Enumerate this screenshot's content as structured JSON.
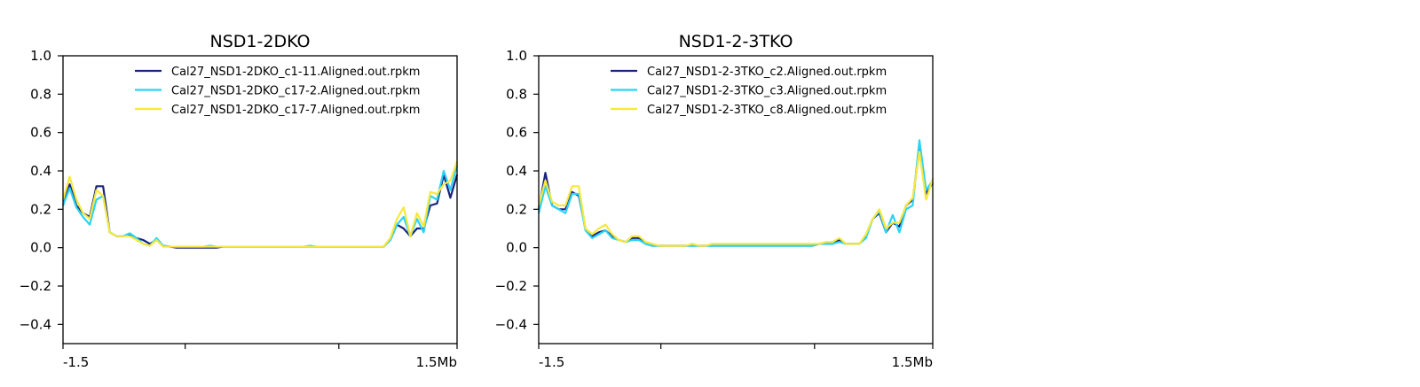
{
  "chart_data": [
    {
      "type": "line",
      "title": "NSD1-2DKO",
      "xlabel": "",
      "ylabel": "",
      "x_tick_labels": [
        "-1.5",
        "",
        "",
        "1.5Mb"
      ],
      "y_ticks": [
        "1.0",
        "0.8",
        "0.6",
        "0.4",
        "0.2",
        "0.0",
        "−0.2",
        "−0.4"
      ],
      "y_tick_values": [
        1.0,
        0.8,
        0.6,
        0.4,
        0.2,
        0.0,
        -0.2,
        -0.4
      ],
      "ylim": [
        -0.5,
        1.0
      ],
      "x_bins": 60,
      "legend_position": "upper right",
      "grid": false,
      "series": [
        {
          "name": "Cal27_NSD1-2DKO_c1-11.Aligned.out.rpkm",
          "color": "#1a237e",
          "values": [
            0.22,
            0.33,
            0.22,
            0.18,
            0.16,
            0.32,
            0.32,
            0.08,
            0.06,
            0.06,
            0.07,
            0.05,
            0.04,
            0.02,
            0.04,
            0.01,
            0.005,
            0.0,
            0.0,
            0.0,
            0.0,
            0.0,
            0.0,
            0.0,
            0.005,
            0.005,
            0.005,
            0.005,
            0.005,
            0.005,
            0.005,
            0.005,
            0.005,
            0.005,
            0.005,
            0.005,
            0.005,
            0.005,
            0.005,
            0.005,
            0.005,
            0.005,
            0.005,
            0.005,
            0.005,
            0.005,
            0.005,
            0.005,
            0.005,
            0.04,
            0.12,
            0.1,
            0.06,
            0.1,
            0.1,
            0.22,
            0.23,
            0.38,
            0.26,
            0.38
          ]
        },
        {
          "name": "Cal27_NSD1-2DKO_c17-2.Aligned.out.rpkm",
          "color": "#29d4f5",
          "values": [
            0.22,
            0.31,
            0.21,
            0.16,
            0.12,
            0.25,
            0.27,
            0.08,
            0.06,
            0.06,
            0.075,
            0.05,
            0.02,
            0.01,
            0.05,
            0.01,
            0.005,
            0.005,
            0.005,
            0.005,
            0.005,
            0.005,
            0.01,
            0.005,
            0.005,
            0.005,
            0.005,
            0.005,
            0.005,
            0.005,
            0.005,
            0.005,
            0.005,
            0.005,
            0.005,
            0.005,
            0.005,
            0.01,
            0.005,
            0.005,
            0.005,
            0.005,
            0.005,
            0.005,
            0.005,
            0.005,
            0.005,
            0.005,
            0.005,
            0.04,
            0.12,
            0.16,
            0.06,
            0.15,
            0.08,
            0.27,
            0.25,
            0.4,
            0.3,
            0.43
          ]
        },
        {
          "name": "Cal27_NSD1-2DKO_c17-7.Aligned.out.rpkm",
          "color": "#f7e83c",
          "values": [
            0.25,
            0.37,
            0.25,
            0.18,
            0.15,
            0.3,
            0.27,
            0.08,
            0.06,
            0.06,
            0.06,
            0.04,
            0.02,
            0.01,
            0.04,
            0.005,
            0.005,
            0.005,
            0.005,
            0.005,
            0.005,
            0.005,
            0.005,
            0.005,
            0.005,
            0.005,
            0.005,
            0.005,
            0.005,
            0.005,
            0.005,
            0.005,
            0.005,
            0.005,
            0.005,
            0.005,
            0.005,
            0.005,
            0.005,
            0.005,
            0.005,
            0.005,
            0.005,
            0.005,
            0.005,
            0.005,
            0.005,
            0.005,
            0.005,
            0.05,
            0.15,
            0.21,
            0.06,
            0.18,
            0.11,
            0.29,
            0.28,
            0.33,
            0.35,
            0.45
          ]
        }
      ]
    },
    {
      "type": "line",
      "title": "NSD1-2-3TKO",
      "xlabel": "",
      "ylabel": "",
      "x_tick_labels": [
        "-1.5",
        "",
        "",
        "1.5Mb"
      ],
      "y_ticks": [
        "1.0",
        "0.8",
        "0.6",
        "0.4",
        "0.2",
        "0.0",
        "−0.2",
        "−0.4"
      ],
      "y_tick_values": [
        1.0,
        0.8,
        0.6,
        0.4,
        0.2,
        0.0,
        -0.2,
        -0.4
      ],
      "ylim": [
        -0.5,
        1.0
      ],
      "x_bins": 60,
      "legend_position": "upper right",
      "grid": false,
      "series": [
        {
          "name": "Cal27_NSD1-2-3TKO_c2.Aligned.out.rpkm",
          "color": "#1a237e",
          "values": [
            0.2,
            0.39,
            0.22,
            0.2,
            0.2,
            0.29,
            0.27,
            0.1,
            0.06,
            0.08,
            0.09,
            0.06,
            0.04,
            0.03,
            0.05,
            0.05,
            0.02,
            0.01,
            0.01,
            0.01,
            0.01,
            0.01,
            0.01,
            0.01,
            0.01,
            0.01,
            0.01,
            0.01,
            0.01,
            0.01,
            0.01,
            0.01,
            0.01,
            0.01,
            0.01,
            0.01,
            0.01,
            0.01,
            0.01,
            0.01,
            0.01,
            0.01,
            0.02,
            0.02,
            0.02,
            0.04,
            0.02,
            0.02,
            0.02,
            0.06,
            0.15,
            0.18,
            0.08,
            0.13,
            0.11,
            0.22,
            0.25,
            0.52,
            0.28,
            0.34
          ]
        },
        {
          "name": "Cal27_NSD1-2-3TKO_c3.Aligned.out.rpkm",
          "color": "#29d4f5",
          "values": [
            0.18,
            0.32,
            0.22,
            0.2,
            0.18,
            0.28,
            0.28,
            0.09,
            0.05,
            0.07,
            0.09,
            0.05,
            0.04,
            0.03,
            0.04,
            0.04,
            0.02,
            0.01,
            0.01,
            0.01,
            0.01,
            0.01,
            0.01,
            0.01,
            0.01,
            0.01,
            0.01,
            0.01,
            0.01,
            0.01,
            0.01,
            0.01,
            0.01,
            0.01,
            0.01,
            0.01,
            0.01,
            0.01,
            0.01,
            0.01,
            0.01,
            0.01,
            0.02,
            0.02,
            0.02,
            0.03,
            0.02,
            0.02,
            0.02,
            0.05,
            0.15,
            0.19,
            0.08,
            0.17,
            0.08,
            0.2,
            0.22,
            0.56,
            0.3,
            0.35
          ]
        },
        {
          "name": "Cal27_NSD1-2-3TKO_c8.Aligned.out.rpkm",
          "color": "#f7e83c",
          "values": [
            0.22,
            0.35,
            0.24,
            0.22,
            0.22,
            0.32,
            0.32,
            0.1,
            0.07,
            0.1,
            0.12,
            0.07,
            0.04,
            0.03,
            0.06,
            0.06,
            0.03,
            0.02,
            0.01,
            0.01,
            0.01,
            0.01,
            0.01,
            0.02,
            0.01,
            0.01,
            0.02,
            0.02,
            0.02,
            0.02,
            0.02,
            0.02,
            0.02,
            0.02,
            0.02,
            0.02,
            0.02,
            0.02,
            0.02,
            0.02,
            0.02,
            0.02,
            0.02,
            0.03,
            0.03,
            0.05,
            0.02,
            0.02,
            0.02,
            0.07,
            0.15,
            0.2,
            0.1,
            0.13,
            0.13,
            0.22,
            0.26,
            0.5,
            0.25,
            0.36
          ]
        }
      ]
    }
  ]
}
